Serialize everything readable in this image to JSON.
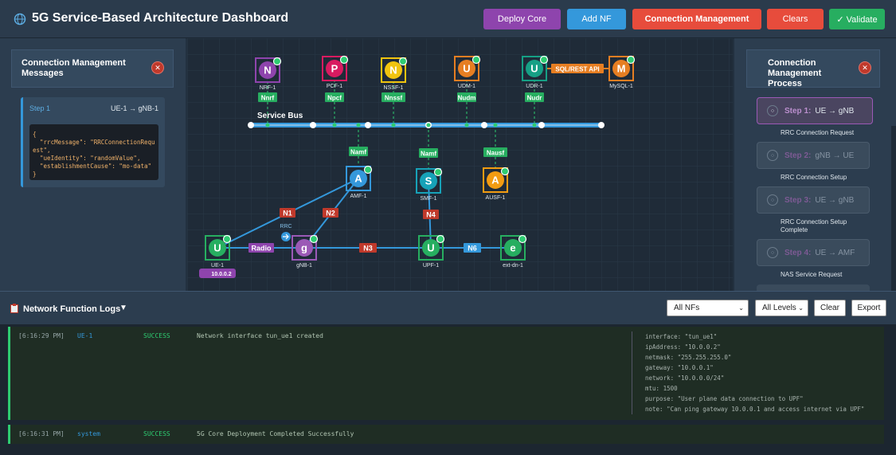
{
  "header": {
    "title": "5G Service-Based Architecture Dashboard",
    "buttons": [
      "Deploy Core",
      "Add NF",
      "Connection Management",
      "Clears",
      "✓ Validate"
    ]
  },
  "messages_panel": {
    "title": "Connection Management Messages",
    "step": "Step 1",
    "route": "UE-1 → gNB-1",
    "code": [
      "{",
      "  \"rrcMessage\": \"RRCConnectionRequest\",",
      "  \"ueIdentity\": \"randomValue\",",
      "  \"establishmentCause\": \"mo-data\"",
      "}"
    ]
  },
  "topology": {
    "bus_label": "Service Bus",
    "nodes": [
      {
        "letter": "N",
        "label": "NRF-1"
      },
      {
        "letter": "P",
        "label": "PCF-1"
      },
      {
        "letter": "N",
        "label": "NSSF-1"
      },
      {
        "letter": "U",
        "label": "UDM-1"
      },
      {
        "letter": "U",
        "label": "UDR-1"
      },
      {
        "letter": "M",
        "label": "MySQL-1"
      },
      {
        "letter": "A",
        "label": "AMF-1"
      },
      {
        "letter": "S",
        "label": "SMF-1"
      },
      {
        "letter": "A",
        "label": "AUSF-1"
      },
      {
        "letter": "U",
        "label": "UE-1"
      },
      {
        "letter": "g",
        "label": "gNB-1"
      },
      {
        "letter": "U",
        "label": "UPF-1"
      },
      {
        "letter": "e",
        "label": "ext-dn-1"
      }
    ],
    "interfaces": [
      "Nnrf",
      "Npcf",
      "Nnssf",
      "Nudm",
      "Nudr",
      "Namf",
      "Namf",
      "Nausf"
    ],
    "links": [
      "Radio",
      "N3",
      "N6",
      "N1",
      "N2",
      "N4",
      "SQL/REST API"
    ],
    "rrc_label": "RRC",
    "ip_badge": "10.0.0.2"
  },
  "process_panel": {
    "title": "Connection Management Process",
    "steps": [
      {
        "step": "Step 1:",
        "route": "UE → gNB",
        "description": "RRC Connection Request"
      },
      {
        "step": "Step 2:",
        "route": "gNB → UE",
        "description": "RRC Connection Setup"
      },
      {
        "step": "Step 3:",
        "route": "UE → gNB",
        "description": "RRC Connection Setup Complete"
      },
      {
        "step": "Step 4:",
        "route": "UE → AMF",
        "description": "NAS Service Request"
      }
    ]
  },
  "logs": {
    "title": "Network Function Logs",
    "filters": [
      "All NFs",
      "All Levels"
    ],
    "buttons": [
      "Clear",
      "Export"
    ],
    "entries": [
      {
        "time": "[6:16:29 PM]",
        "source": "UE-1",
        "level": "SUCCESS",
        "message": "Network interface tun_ue1 created",
        "details": [
          "interface: \"tun_ue1\"",
          "ipAddress: \"10.0.0.2\"",
          "netmask: \"255.255.255.0\"",
          "gateway: \"10.0.0.1\"",
          "network: \"10.0.0.0/24\"",
          "mtu: 1500",
          "purpose: \"User plane data connection to UPF\"",
          "note: \"Can ping gateway 10.0.0.1 and access internet via UPF\""
        ]
      },
      {
        "time": "[6:16:31 PM]",
        "source": "system",
        "level": "SUCCESS",
        "message": "5G Core Deployment Completed Successfully",
        "details": []
      }
    ]
  }
}
